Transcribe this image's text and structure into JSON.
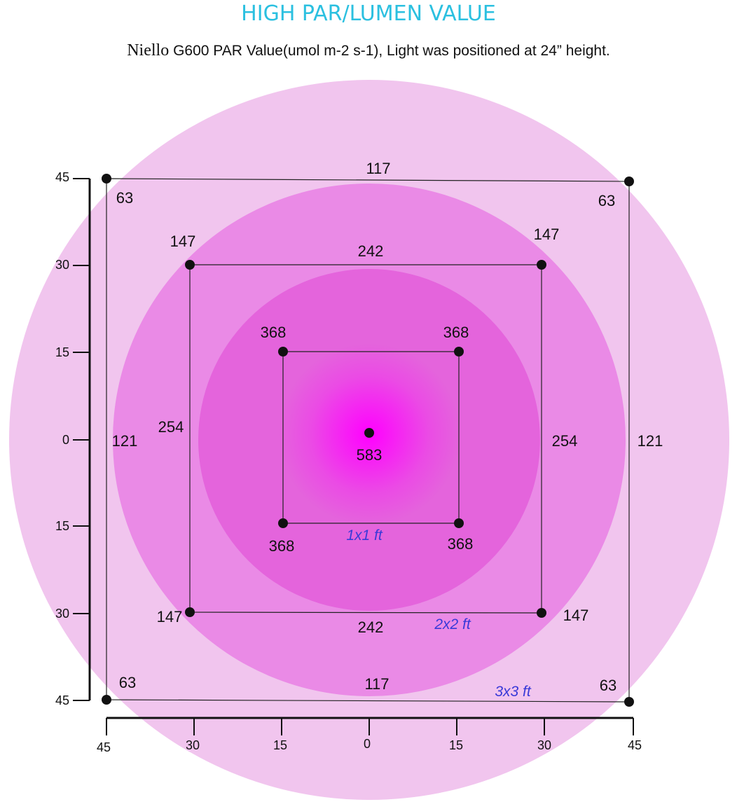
{
  "heading": "HIGH PAR/LUMEN VALUE",
  "subtitle": {
    "brand": "Niello",
    "text": "G600 PAR Value(umol m-2 s-1), Light was positioned at 24” height."
  },
  "colors": {
    "heading": "#2bc0e0",
    "outer_ring": "#f1c5ee",
    "middle_ring": "#ea8ae6",
    "inner_ring": "#e464dc",
    "center_glow": "#ff00ff",
    "area_label": "#3a3ad8"
  },
  "center_value": "583",
  "squares": {
    "s3": {
      "area_label": "3x3 ft",
      "corner_tl": "63",
      "corner_tr": "63",
      "corner_bl": "63",
      "corner_br": "63",
      "edge_top": "117",
      "edge_bottom": "117",
      "edge_left": "121",
      "edge_right": "121"
    },
    "s2": {
      "area_label": "2x2 ft",
      "corner_tl": "147",
      "corner_tr": "147",
      "corner_bl": "147",
      "corner_br": "147",
      "edge_top": "242",
      "edge_bottom": "242",
      "edge_left": "254",
      "edge_right": "254"
    },
    "s1": {
      "area_label": "1x1 ft",
      "corner_tl": "368",
      "corner_tr": "368",
      "corner_bl": "368",
      "corner_br": "368"
    }
  },
  "y_axis_ticks": [
    "45",
    "30",
    "15",
    "0",
    "15",
    "30",
    "45"
  ],
  "x_axis_ticks": [
    "45",
    "30",
    "15",
    "0",
    "15",
    "30",
    "45"
  ]
}
